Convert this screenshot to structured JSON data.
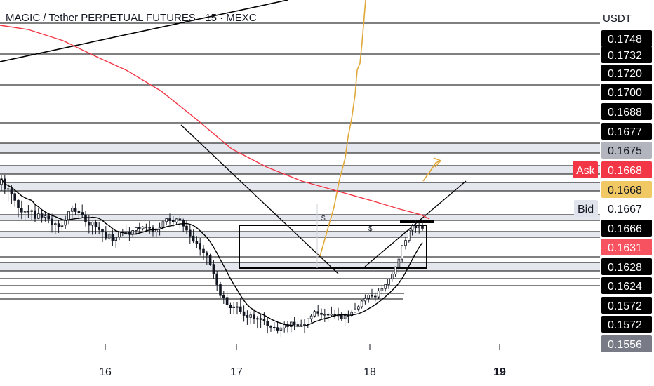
{
  "header": {
    "title": "MAGIC / Tether PERPETUAL FUTURES · 15 · MEXC",
    "quote_currency": "USDT"
  },
  "chart_data": {
    "type": "candlestick",
    "symbol": "MAGIC / Tether PERPETUAL FUTURES",
    "interval": "15",
    "exchange": "MEXC",
    "x_ticks": [
      "16",
      "17",
      "18",
      "19"
    ],
    "y_range": [
      0.1556,
      0.1748
    ],
    "grid": false,
    "price_labels": [
      {
        "value": "0.1748",
        "bg": "#000000",
        "fg": "#ffffff"
      },
      {
        "value": "0.1732",
        "bg": "#000000",
        "fg": "#ffffff"
      },
      {
        "value": "0.1720",
        "bg": "#000000",
        "fg": "#ffffff"
      },
      {
        "value": "0.1700",
        "bg": "#000000",
        "fg": "#ffffff"
      },
      {
        "value": "0.1688",
        "bg": "#000000",
        "fg": "#ffffff"
      },
      {
        "value": "0.1677",
        "bg": "#000000",
        "fg": "#ffffff"
      },
      {
        "value": "0.1675",
        "bg": "#b2b5be",
        "fg": "#131722"
      },
      {
        "value": "0.1668",
        "bg": "#f23645",
        "fg": "#ffffff",
        "tag": "Ask"
      },
      {
        "value": "0.1668",
        "bg": "#f0c864",
        "fg": "#131722"
      },
      {
        "value": "0.1667",
        "bg": "#ffffff",
        "fg": "#131722",
        "tag": "Bid"
      },
      {
        "value": "0.1666",
        "bg": "#000000",
        "fg": "#ffffff"
      },
      {
        "value": "0.1631",
        "bg": "#f7525f",
        "fg": "#ffffff"
      },
      {
        "value": "0.1628",
        "bg": "#000000",
        "fg": "#ffffff"
      },
      {
        "value": "0.1624",
        "bg": "#000000",
        "fg": "#ffffff"
      },
      {
        "value": "0.1572",
        "bg": "#000000",
        "fg": "#ffffff"
      },
      {
        "value": "0.1572",
        "bg": "#000000",
        "fg": "#ffffff"
      },
      {
        "value": "0.1556",
        "bg": "#787b86",
        "fg": "#ffffff"
      }
    ],
    "moving_averages": [
      {
        "color": "#f23645"
      },
      {
        "color": "#000000"
      }
    ],
    "projection_color": "#e0a83a",
    "annotations": [
      "$",
      "$"
    ],
    "candles": [
      [
        0.17066,
        0.17159,
        0.17119,
        0.17001
      ],
      [
        0.17119,
        0.17159,
        0.17025,
        0.16977
      ],
      [
        0.17025,
        0.17075,
        0.17023,
        0.16899
      ],
      [
        0.17023,
        0.17057,
        0.16979,
        0.16882
      ],
      [
        0.16979,
        0.17005,
        0.16915,
        0.16853
      ],
      [
        0.16915,
        0.16927,
        0.1684,
        0.16754
      ],
      [
        0.1684,
        0.16912,
        0.16802,
        0.16735
      ],
      [
        0.16802,
        0.16815,
        0.1681,
        0.16716
      ],
      [
        0.1681,
        0.1687,
        0.16808,
        0.16744
      ],
      [
        0.16808,
        0.16826,
        0.16816,
        0.16729
      ],
      [
        0.16816,
        0.16872,
        0.16741,
        0.16708
      ],
      [
        0.16741,
        0.16843,
        0.16785,
        0.16735
      ],
      [
        0.16785,
        0.16823,
        0.16753,
        0.16699
      ],
      [
        0.16753,
        0.16799,
        0.16765,
        0.16711
      ],
      [
        0.16765,
        0.16791,
        0.16736,
        0.16695
      ],
      [
        0.16736,
        0.16786,
        0.16683,
        0.16606
      ],
      [
        0.16683,
        0.16712,
        0.16691,
        0.16592
      ],
      [
        0.16691,
        0.16728,
        0.16665,
        0.16603
      ],
      [
        0.16665,
        0.16708,
        0.16677,
        0.16625
      ],
      [
        0.16677,
        0.16766,
        0.16726,
        0.16641
      ],
      [
        0.16726,
        0.16804,
        0.16808,
        0.16687
      ],
      [
        0.16808,
        0.16865,
        0.16839,
        0.16748
      ],
      [
        0.16839,
        0.16888,
        0.16807,
        0.16778
      ],
      [
        0.16807,
        0.16833,
        0.16799,
        0.16721
      ],
      [
        0.16799,
        0.16874,
        0.16778,
        0.16743
      ],
      [
        0.16778,
        0.1681,
        0.16707,
        0.16666
      ],
      [
        0.16707,
        0.16779,
        0.16676,
        0.16599
      ],
      [
        0.16676,
        0.16711,
        0.16706,
        0.16586
      ],
      [
        0.16706,
        0.1673,
        0.16658,
        0.16588
      ],
      [
        0.16658,
        0.16707,
        0.16633,
        0.16588
      ],
      [
        0.16633,
        0.16642,
        0.16611,
        0.16514
      ],
      [
        0.16611,
        0.16668,
        0.16554,
        0.16534
      ],
      [
        0.16554,
        0.16612,
        0.16589,
        0.16533
      ],
      [
        0.16589,
        0.16633,
        0.16531,
        0.16477
      ],
      [
        0.16531,
        0.16544,
        0.16561,
        0.16462
      ],
      [
        0.16561,
        0.16615,
        0.16615,
        0.16534
      ],
      [
        0.16615,
        0.16637,
        0.16605,
        0.16574
      ],
      [
        0.16605,
        0.16686,
        0.16613,
        0.16585
      ],
      [
        0.16613,
        0.16659,
        0.1659,
        0.16527
      ],
      [
        0.1659,
        0.16611,
        0.16626,
        0.16563
      ],
      [
        0.16626,
        0.16663,
        0.16653,
        0.16584
      ],
      [
        0.16653,
        0.16698,
        0.16643,
        0.16594
      ],
      [
        0.16643,
        0.16668,
        0.1666,
        0.16626
      ],
      [
        0.1666,
        0.16691,
        0.16655,
        0.16618
      ],
      [
        0.16655,
        0.16716,
        0.16651,
        0.16592
      ],
      [
        0.16651,
        0.16676,
        0.16611,
        0.16571
      ],
      [
        0.16611,
        0.16634,
        0.16641,
        0.16568
      ],
      [
        0.16641,
        0.16699,
        0.16653,
        0.16578
      ],
      [
        0.16653,
        0.16722,
        0.16711,
        0.1663
      ],
      [
        0.16711,
        0.16741,
        0.16739,
        0.16675
      ],
      [
        0.16739,
        0.16787,
        0.16719,
        0.16685
      ],
      [
        0.16719,
        0.16763,
        0.16705,
        0.16662
      ],
      [
        0.16705,
        0.16742,
        0.16737,
        0.16683
      ],
      [
        0.16737,
        0.16771,
        0.16721,
        0.16647
      ],
      [
        0.16721,
        0.16739,
        0.16668,
        0.1661
      ],
      [
        0.16668,
        0.1672,
        0.16629,
        0.16588
      ],
      [
        0.16629,
        0.1668,
        0.16573,
        0.16499
      ],
      [
        0.16573,
        0.16634,
        0.16523,
        0.16507
      ],
      [
        0.16523,
        0.16573,
        0.16504,
        0.16457
      ],
      [
        0.16504,
        0.16555,
        0.16447,
        0.16384
      ],
      [
        0.16447,
        0.16488,
        0.16414,
        0.16341
      ],
      [
        0.16414,
        0.16435,
        0.16387,
        0.16299
      ],
      [
        0.16387,
        0.16403,
        0.16302,
        0.16288
      ],
      [
        0.16302,
        0.16347,
        0.16212,
        0.1617
      ],
      [
        0.16212,
        0.16237,
        0.16109,
        0.1605
      ],
      [
        0.16109,
        0.16133,
        0.16004,
        0.15981
      ],
      [
        0.16004,
        0.16047,
        0.15986,
        0.15925
      ],
      [
        0.15986,
        0.16043,
        0.15915,
        0.15882
      ],
      [
        0.15915,
        0.15934,
        0.15887,
        0.15826
      ],
      [
        0.15887,
        0.15939,
        0.15896,
        0.15827
      ],
      [
        0.15896,
        0.15944,
        0.15897,
        0.15823
      ],
      [
        0.15897,
        0.1598,
        0.15849,
        0.15829
      ],
      [
        0.15849,
        0.15909,
        0.15814,
        0.15754
      ],
      [
        0.15814,
        0.15863,
        0.15795,
        0.15724
      ],
      [
        0.15795,
        0.15852,
        0.15819,
        0.15736
      ],
      [
        0.15819,
        0.15874,
        0.15785,
        0.1573
      ],
      [
        0.15785,
        0.15809,
        0.15785,
        0.15689
      ],
      [
        0.15785,
        0.15827,
        0.15775,
        0.15691
      ],
      [
        0.15775,
        0.15843,
        0.1576,
        0.15723
      ],
      [
        0.1576,
        0.15802,
        0.15713,
        0.15642
      ],
      [
        0.15713,
        0.15721,
        0.15701,
        0.15657
      ],
      [
        0.15701,
        0.15749,
        0.15698,
        0.15668
      ],
      [
        0.15698,
        0.1576,
        0.15673,
        0.1564
      ],
      [
        0.15673,
        0.15715,
        0.15695,
        0.15611
      ],
      [
        0.15695,
        0.15755,
        0.15725,
        0.15651
      ],
      [
        0.15725,
        0.15758,
        0.15707,
        0.15653
      ],
      [
        0.15707,
        0.15762,
        0.1575,
        0.15654
      ],
      [
        0.1575,
        0.15802,
        0.15726,
        0.15676
      ],
      [
        0.15726,
        0.15756,
        0.15719,
        0.15688
      ],
      [
        0.15719,
        0.15773,
        0.15728,
        0.15703
      ],
      [
        0.15728,
        0.15779,
        0.15728,
        0.15647
      ],
      [
        0.15728,
        0.15759,
        0.15783,
        0.15694
      ],
      [
        0.15783,
        0.15829,
        0.15809,
        0.15747
      ],
      [
        0.15809,
        0.15871,
        0.15852,
        0.15794
      ],
      [
        0.15852,
        0.15912,
        0.15835,
        0.15808
      ],
      [
        0.15835,
        0.15881,
        0.15823,
        0.15776
      ],
      [
        0.15823,
        0.15878,
        0.15824,
        0.15751
      ],
      [
        0.15824,
        0.15849,
        0.15817,
        0.15755
      ],
      [
        0.15817,
        0.15899,
        0.15828,
        0.15798
      ],
      [
        0.15828,
        0.15873,
        0.15812,
        0.15782
      ],
      [
        0.15812,
        0.15887,
        0.15818,
        0.15768
      ],
      [
        0.15818,
        0.15846,
        0.15783,
        0.1576
      ],
      [
        0.15783,
        0.15837,
        0.15814,
        0.15716
      ],
      [
        0.15814,
        0.15861,
        0.15813,
        0.15743
      ],
      [
        0.15813,
        0.15862,
        0.15844,
        0.15798
      ],
      [
        0.15844,
        0.15932,
        0.15876,
        0.15847
      ],
      [
        0.15876,
        0.15917,
        0.15898,
        0.15854
      ],
      [
        0.15898,
        0.15958,
        0.15952,
        0.1588
      ],
      [
        0.15952,
        0.16015,
        0.15976,
        0.15919
      ],
      [
        0.15976,
        0.16014,
        0.16009,
        0.15934
      ],
      [
        0.16009,
        0.16067,
        0.15998,
        0.1598
      ],
      [
        0.15998,
        0.16033,
        0.15991,
        0.15948
      ],
      [
        0.15991,
        0.16078,
        0.16049,
        0.15974
      ],
      [
        0.16049,
        0.16105,
        0.16071,
        0.16004
      ],
      [
        0.16071,
        0.16113,
        0.1611,
        0.16043
      ],
      [
        0.1611,
        0.16158,
        0.16165,
        0.16067
      ],
      [
        0.16165,
        0.16227,
        0.16209,
        0.16134
      ],
      [
        0.16209,
        0.16283,
        0.16278,
        0.16179
      ],
      [
        0.16278,
        0.16358,
        0.16353,
        0.16222
      ],
      [
        0.16353,
        0.16464,
        0.16483,
        0.16316
      ],
      [
        0.16483,
        0.16568,
        0.16531,
        0.16445
      ],
      [
        0.16531,
        0.16617,
        0.16628,
        0.1651
      ],
      [
        0.16628,
        0.16688,
        0.16671,
        0.16578
      ],
      [
        0.16671,
        0.16727,
        0.16651,
        0.16603
      ],
      [
        0.16651,
        0.16703,
        0.16667,
        0.16597
      ],
      [
        0.16667,
        0.16724,
        0.16646,
        0.16622
      ]
    ]
  }
}
